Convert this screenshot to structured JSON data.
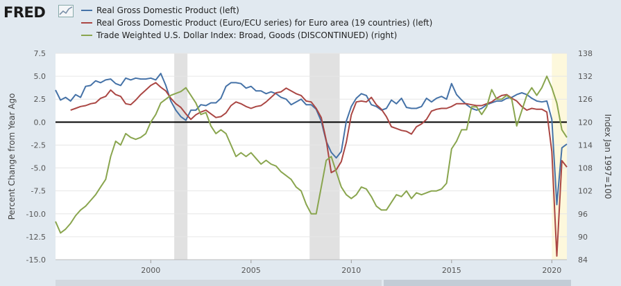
{
  "header": {
    "logo_text": "FRED",
    "logo_mark_icon": "chart-line-icon"
  },
  "legend": [
    {
      "label": "Real Gross Domestic Product (left)",
      "color": "#4572a7"
    },
    {
      "label": "Real Gross Domestic Product (Euro/ECU series) for Euro area (19 countries) (left)",
      "color": "#aa4643"
    },
    {
      "label": "Trade Weighted U.S. Dollar Index: Broad, Goods (DISCONTINUED) (right)",
      "color": "#89a54e"
    }
  ],
  "chart_data": {
    "type": "line",
    "ylabel": "Percent Change from Year Ago",
    "y2label": "Index Jan 1997=100",
    "xlim": [
      1995.25,
      2020.75
    ],
    "ylim": [
      -15,
      7.5
    ],
    "y2lim": [
      84,
      138
    ],
    "x_ticks": [
      2000,
      2005,
      2010,
      2015,
      2020
    ],
    "y_ticks": [
      7.5,
      5.0,
      2.5,
      0.0,
      -2.5,
      -5.0,
      -7.5,
      -10.0,
      -12.5,
      -15.0
    ],
    "y2_ticks": [
      138,
      132,
      126,
      120,
      114,
      108,
      102,
      96,
      90,
      84
    ],
    "recessions": [
      [
        2001.17,
        2001.83
      ],
      [
        2007.92,
        2009.42
      ]
    ],
    "highlight": [
      2020.0,
      2020.75
    ],
    "series": [
      {
        "name": "Real Gross Domestic Product (left)",
        "axis": "left",
        "color": "#4572a7",
        "x": [
          1995.25,
          1995.5,
          1995.75,
          1996.0,
          1996.25,
          1996.5,
          1996.75,
          1997.0,
          1997.25,
          1997.5,
          1997.75,
          1998.0,
          1998.25,
          1998.5,
          1998.75,
          1999.0,
          1999.25,
          1999.5,
          1999.75,
          2000.0,
          2000.25,
          2000.5,
          2000.75,
          2001.0,
          2001.25,
          2001.5,
          2001.75,
          2002.0,
          2002.25,
          2002.5,
          2002.75,
          2003.0,
          2003.25,
          2003.5,
          2003.75,
          2004.0,
          2004.25,
          2004.5,
          2004.75,
          2005.0,
          2005.25,
          2005.5,
          2005.75,
          2006.0,
          2006.25,
          2006.5,
          2006.75,
          2007.0,
          2007.25,
          2007.5,
          2007.75,
          2008.0,
          2008.25,
          2008.5,
          2008.75,
          2009.0,
          2009.25,
          2009.5,
          2009.75,
          2010.0,
          2010.25,
          2010.5,
          2010.75,
          2011.0,
          2011.25,
          2011.5,
          2011.75,
          2012.0,
          2012.25,
          2012.5,
          2012.75,
          2013.0,
          2013.25,
          2013.5,
          2013.75,
          2014.0,
          2014.25,
          2014.5,
          2014.75,
          2015.0,
          2015.25,
          2015.5,
          2015.75,
          2016.0,
          2016.25,
          2016.5,
          2016.75,
          2017.0,
          2017.25,
          2017.5,
          2017.75,
          2018.0,
          2018.25,
          2018.5,
          2018.75,
          2019.0,
          2019.25,
          2019.5,
          2019.75,
          2020.0,
          2020.25,
          2020.5,
          2020.75
        ],
        "y": [
          3.5,
          2.4,
          2.7,
          2.3,
          3.0,
          2.7,
          3.9,
          4.0,
          4.5,
          4.3,
          4.6,
          4.7,
          4.2,
          4.0,
          4.8,
          4.6,
          4.8,
          4.7,
          4.7,
          4.8,
          4.6,
          5.3,
          4.0,
          2.3,
          1.3,
          0.6,
          0.2,
          1.3,
          1.3,
          1.9,
          1.8,
          2.1,
          2.1,
          2.6,
          3.9,
          4.3,
          4.3,
          4.2,
          3.7,
          3.9,
          3.4,
          3.4,
          3.1,
          3.3,
          3.1,
          2.7,
          2.5,
          1.9,
          2.2,
          2.5,
          1.9,
          1.9,
          1.4,
          0.1,
          -2.1,
          -3.3,
          -3.9,
          -3.2,
          0.1,
          1.7,
          2.6,
          3.1,
          2.9,
          1.9,
          1.7,
          1.3,
          1.5,
          2.4,
          2.0,
          2.6,
          1.6,
          1.5,
          1.5,
          1.7,
          2.6,
          2.2,
          2.6,
          2.8,
          2.5,
          4.2,
          3.0,
          2.4,
          1.9,
          1.5,
          1.3,
          1.5,
          1.9,
          2.1,
          2.3,
          2.3,
          2.6,
          2.7,
          3.0,
          3.2,
          3.0,
          2.6,
          2.3,
          2.2,
          2.3,
          0.3,
          -9.0,
          -2.8,
          -2.4
        ]
      },
      {
        "name": "Real Gross Domestic Product (Euro/ECU series) for Euro area (19 countries) (left)",
        "axis": "left",
        "color": "#aa4643",
        "x": [
          1996.0,
          1996.25,
          1996.5,
          1996.75,
          1997.0,
          1997.25,
          1997.5,
          1997.75,
          1998.0,
          1998.25,
          1998.5,
          1998.75,
          1999.0,
          1999.25,
          1999.5,
          1999.75,
          2000.0,
          2000.25,
          2000.5,
          2000.75,
          2001.0,
          2001.25,
          2001.5,
          2001.75,
          2002.0,
          2002.25,
          2002.5,
          2002.75,
          2003.0,
          2003.25,
          2003.5,
          2003.75,
          2004.0,
          2004.25,
          2004.5,
          2004.75,
          2005.0,
          2005.25,
          2005.5,
          2005.75,
          2006.0,
          2006.25,
          2006.5,
          2006.75,
          2007.0,
          2007.25,
          2007.5,
          2007.75,
          2008.0,
          2008.25,
          2008.5,
          2008.75,
          2009.0,
          2009.25,
          2009.5,
          2009.75,
          2010.0,
          2010.25,
          2010.5,
          2010.75,
          2011.0,
          2011.25,
          2011.5,
          2011.75,
          2012.0,
          2012.25,
          2012.5,
          2012.75,
          2013.0,
          2013.25,
          2013.5,
          2013.75,
          2014.0,
          2014.25,
          2014.5,
          2014.75,
          2015.0,
          2015.25,
          2015.5,
          2015.75,
          2016.0,
          2016.25,
          2016.5,
          2016.75,
          2017.0,
          2017.25,
          2017.5,
          2017.75,
          2018.0,
          2018.25,
          2018.5,
          2018.75,
          2019.0,
          2019.25,
          2019.5,
          2019.75,
          2020.0,
          2020.25,
          2020.5,
          2020.75
        ],
        "y": [
          1.3,
          1.5,
          1.7,
          1.8,
          2.0,
          2.1,
          2.6,
          2.8,
          3.5,
          3.0,
          2.8,
          2.0,
          1.9,
          2.4,
          3.0,
          3.5,
          4.0,
          4.3,
          3.8,
          3.4,
          2.6,
          2.0,
          1.6,
          0.9,
          0.3,
          0.8,
          1.1,
          1.3,
          0.9,
          0.5,
          0.6,
          1.0,
          1.8,
          2.2,
          2.0,
          1.7,
          1.5,
          1.7,
          1.8,
          2.2,
          2.7,
          3.2,
          3.3,
          3.7,
          3.4,
          3.1,
          2.9,
          2.3,
          2.2,
          1.5,
          0.5,
          -2.0,
          -5.5,
          -5.2,
          -4.3,
          -2.2,
          0.8,
          2.2,
          2.3,
          2.2,
          2.7,
          1.9,
          1.4,
          0.6,
          -0.5,
          -0.7,
          -0.9,
          -1.0,
          -1.3,
          -0.5,
          -0.2,
          0.3,
          1.2,
          1.4,
          1.5,
          1.5,
          1.7,
          2.0,
          2.0,
          2.0,
          1.9,
          1.8,
          1.8,
          2.0,
          2.2,
          2.6,
          2.9,
          3.0,
          2.6,
          2.3,
          1.7,
          1.3,
          1.5,
          1.4,
          1.4,
          1.1,
          -3.2,
          -14.6,
          -4.2,
          -4.9
        ]
      },
      {
        "name": "Trade Weighted U.S. Dollar Index: Broad, Goods (DISCONTINUED) (right)",
        "axis": "right",
        "color": "#89a54e",
        "x": [
          1995.25,
          1995.5,
          1995.75,
          1996.0,
          1996.25,
          1996.5,
          1996.75,
          1997.0,
          1997.25,
          1997.5,
          1997.75,
          1998.0,
          1998.25,
          1998.5,
          1998.75,
          1999.0,
          1999.25,
          1999.5,
          1999.75,
          2000.0,
          2000.25,
          2000.5,
          2000.75,
          2001.0,
          2001.25,
          2001.5,
          2001.75,
          2002.0,
          2002.25,
          2002.5,
          2002.75,
          2003.0,
          2003.25,
          2003.5,
          2003.75,
          2004.0,
          2004.25,
          2004.5,
          2004.75,
          2005.0,
          2005.25,
          2005.5,
          2005.75,
          2006.0,
          2006.25,
          2006.5,
          2006.75,
          2007.0,
          2007.25,
          2007.5,
          2007.75,
          2008.0,
          2008.25,
          2008.5,
          2008.75,
          2009.0,
          2009.25,
          2009.5,
          2009.75,
          2010.0,
          2010.25,
          2010.5,
          2010.75,
          2011.0,
          2011.25,
          2011.5,
          2011.75,
          2012.0,
          2012.25,
          2012.5,
          2012.75,
          2013.0,
          2013.25,
          2013.5,
          2013.75,
          2014.0,
          2014.25,
          2014.5,
          2014.75,
          2015.0,
          2015.25,
          2015.5,
          2015.75,
          2016.0,
          2016.25,
          2016.5,
          2016.75,
          2017.0,
          2017.25,
          2017.5,
          2017.75,
          2018.0,
          2018.25,
          2018.5,
          2018.75,
          2019.0,
          2019.25,
          2019.5,
          2019.75,
          2020.0,
          2020.25,
          2020.5,
          2020.75
        ],
        "y": [
          94,
          91,
          92,
          93.5,
          95.5,
          97,
          98,
          99.5,
          101,
          103,
          105,
          111,
          115,
          114,
          117,
          116,
          115.5,
          116,
          117,
          120,
          122,
          125,
          126,
          127,
          127.5,
          128,
          129,
          127,
          125,
          122,
          122.5,
          119,
          117,
          118,
          117,
          114,
          111,
          112,
          111,
          112,
          110.5,
          109,
          110,
          109,
          108.5,
          107,
          106,
          105,
          103,
          102,
          98.5,
          96,
          96,
          103,
          110,
          111,
          107,
          103,
          101,
          100,
          101,
          103,
          102.5,
          100.5,
          98,
          97,
          97,
          99,
          101,
          100.5,
          102,
          100,
          101.5,
          101,
          101.5,
          102,
          102,
          102.5,
          104,
          113,
          115,
          118,
          118,
          124,
          124,
          122,
          124,
          128.5,
          126,
          126,
          127,
          126,
          119,
          123,
          127,
          129,
          127,
          129,
          132,
          129,
          125,
          118,
          116
        ]
      }
    ]
  }
}
